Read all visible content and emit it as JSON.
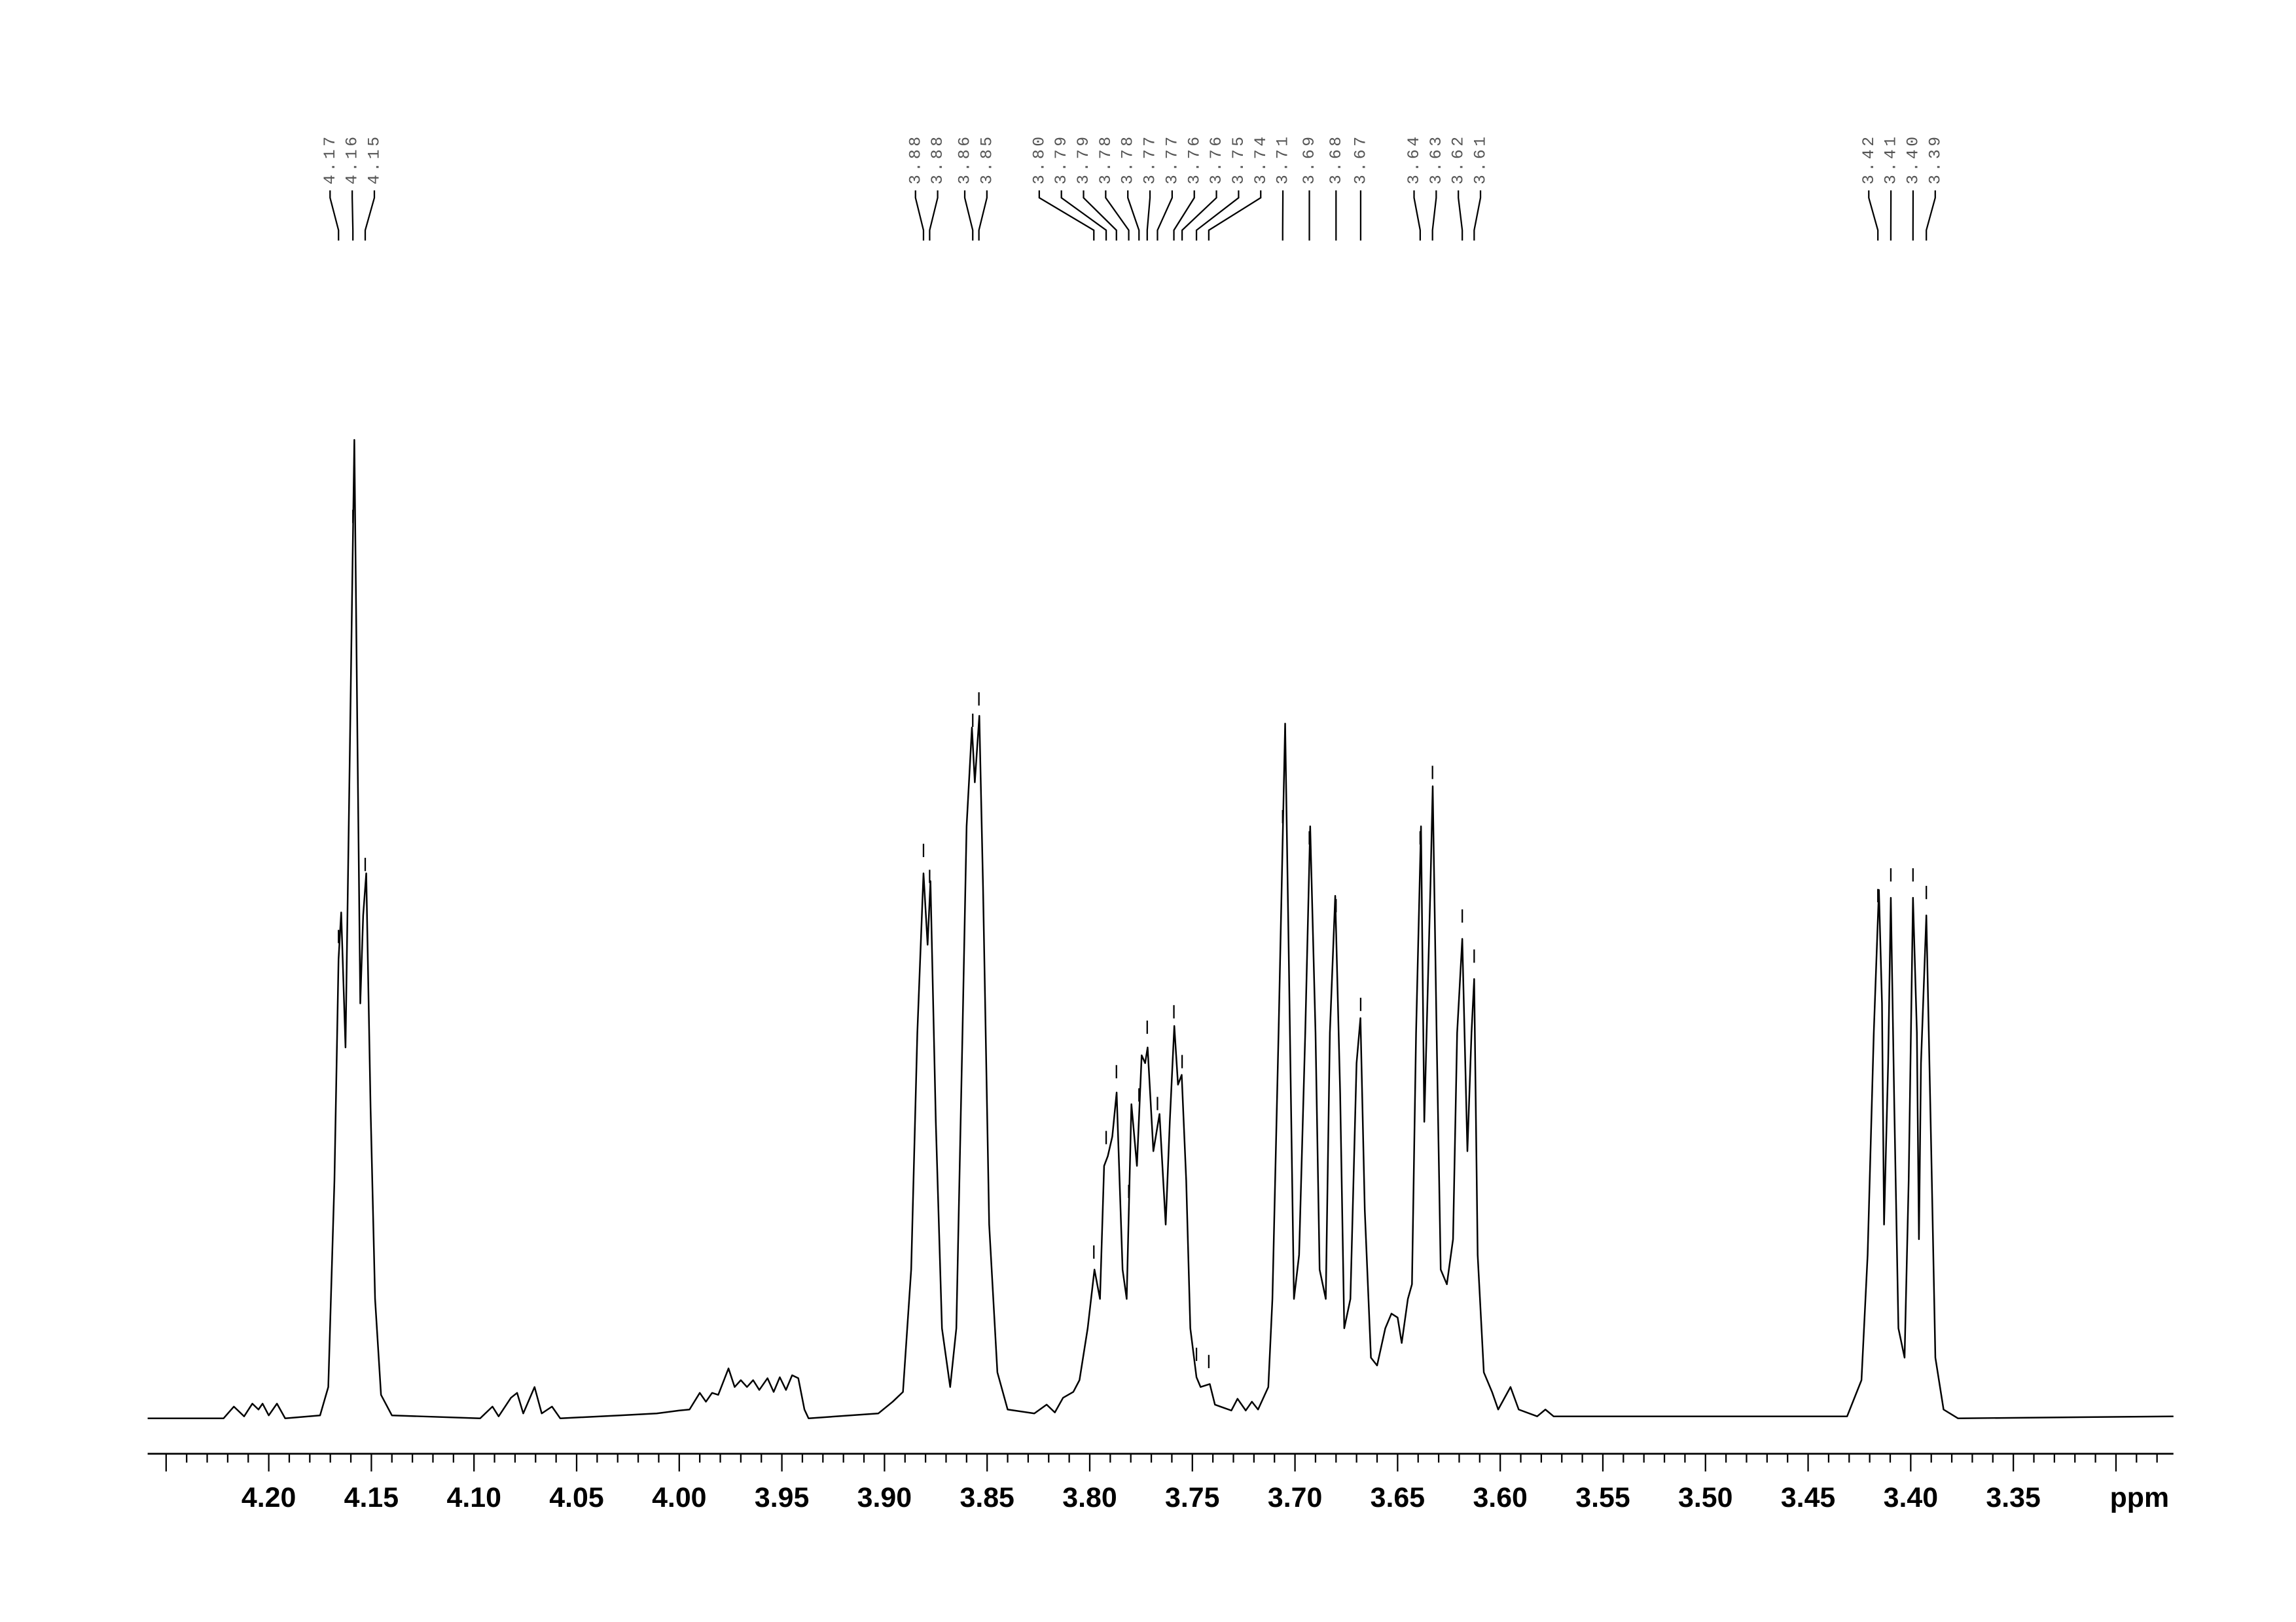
{
  "chart_data": {
    "type": "line",
    "xlabel": "ppm",
    "color": "#000000",
    "xlim": [
      4.259,
      3.272
    ],
    "ylim": [
      0,
      100
    ],
    "xticks": [
      {
        "value": 4.2,
        "label": "4.20"
      },
      4.15,
      {
        "value": 4.1,
        "label": "4.10"
      },
      4.05,
      {
        "value": 4.0,
        "label": "4.00"
      },
      3.95,
      {
        "value": 3.9,
        "label": "3.90"
      },
      3.85,
      {
        "value": 3.8,
        "label": "3.80"
      },
      3.75,
      {
        "value": 3.7,
        "label": "3.70"
      },
      3.65,
      {
        "value": 3.6,
        "label": "3.60"
      },
      3.55,
      {
        "value": 3.5,
        "label": "3.50"
      },
      3.45,
      {
        "value": 3.4,
        "label": "3.40"
      },
      3.35
    ],
    "xminorticks": [
      4.25,
      4.24,
      4.23,
      4.22,
      4.21,
      4.2,
      4.19,
      4.18,
      4.17,
      4.16,
      4.15,
      4.14,
      4.13,
      4.12,
      4.11,
      4.1,
      4.09,
      4.08,
      4.07,
      4.06,
      4.05,
      4.04,
      4.03,
      4.02,
      4.01,
      4.0,
      3.99,
      3.98,
      3.97,
      3.96,
      3.95,
      3.94,
      3.93,
      3.92,
      3.91,
      3.9,
      3.89,
      3.88,
      3.87,
      3.86,
      3.85,
      3.84,
      3.83,
      3.82,
      3.81,
      3.8,
      3.79,
      3.78,
      3.77,
      3.76,
      3.75,
      3.74,
      3.73,
      3.72,
      3.71,
      3.7,
      3.69,
      3.68,
      3.67,
      3.66,
      3.65,
      3.64,
      3.63,
      3.62,
      3.61,
      3.6,
      3.59,
      3.58,
      3.57,
      3.56,
      3.55,
      3.54,
      3.53,
      3.52,
      3.51,
      3.5,
      3.49,
      3.48,
      3.47,
      3.46,
      3.45,
      3.44,
      3.43,
      3.42,
      3.41,
      3.4,
      3.39,
      3.38,
      3.37,
      3.36,
      3.35,
      3.34,
      3.33,
      3.32,
      3.31,
      3.3,
      3.29,
      3.28
    ],
    "peak_labels": [
      {
        "value": 4.166,
        "label": "4.17"
      },
      {
        "value": 4.159,
        "label": "4.16"
      },
      {
        "value": 4.153,
        "label": "4.15"
      },
      {
        "value": 3.881,
        "label": "3.88"
      },
      {
        "value": 3.878,
        "label": "3.88"
      },
      {
        "value": 3.857,
        "label": "3.86"
      },
      {
        "value": 3.854,
        "label": "3.85"
      },
      {
        "value": 3.798,
        "label": "3.80"
      },
      {
        "value": 3.792,
        "label": "3.79"
      },
      {
        "value": 3.787,
        "label": "3.79"
      },
      {
        "value": 3.781,
        "label": "3.78"
      },
      {
        "value": 3.776,
        "label": "3.78"
      },
      {
        "value": 3.772,
        "label": "3.77"
      },
      {
        "value": 3.767,
        "label": "3.77"
      },
      {
        "value": 3.759,
        "label": "3.76"
      },
      {
        "value": 3.755,
        "label": "3.76"
      },
      {
        "value": 3.748,
        "label": "3.75"
      },
      {
        "value": 3.742,
        "label": "3.74"
      },
      {
        "value": 3.706,
        "label": "3.71"
      },
      {
        "value": 3.693,
        "label": "3.69"
      },
      {
        "value": 3.68,
        "label": "3.68"
      },
      {
        "value": 3.668,
        "label": "3.67"
      },
      {
        "value": 3.639,
        "label": "3.64"
      },
      {
        "value": 3.633,
        "label": "3.63"
      },
      {
        "value": 3.6185,
        "label": "3.62"
      },
      {
        "value": 3.6127,
        "label": "3.61"
      },
      {
        "value": 3.416,
        "label": "3.42"
      },
      {
        "value": 3.4097,
        "label": "3.41"
      },
      {
        "value": 3.3989,
        "label": "3.40"
      },
      {
        "value": 3.3924,
        "label": "3.39"
      }
    ],
    "x": [
      4.259,
      4.222,
      4.217,
      4.212,
      4.208,
      4.205,
      4.203,
      4.2,
      4.196,
      4.192,
      4.175,
      4.171,
      4.168,
      4.166,
      4.1647,
      4.1626,
      4.1604,
      4.1583,
      4.1568,
      4.1554,
      4.154,
      4.1525,
      4.1504,
      4.1482,
      4.1453,
      4.14,
      4.097,
      4.091,
      4.088,
      4.082,
      4.079,
      4.076,
      4.0705,
      4.067,
      4.062,
      4.058,
      4.029,
      4.011,
      4.0,
      3.995,
      3.99,
      3.987,
      3.984,
      3.981,
      3.976,
      3.973,
      3.97,
      3.967,
      3.964,
      3.961,
      3.957,
      3.954,
      3.951,
      3.948,
      3.945,
      3.942,
      3.939,
      3.937,
      3.903,
      3.896,
      3.891,
      3.887,
      3.884,
      3.881,
      3.879,
      3.8776,
      3.875,
      3.872,
      3.868,
      3.865,
      3.862,
      3.86,
      3.8574,
      3.856,
      3.8538,
      3.852,
      3.849,
      3.845,
      3.84,
      3.827,
      3.821,
      3.817,
      3.813,
      3.808,
      3.805,
      3.801,
      3.7977,
      3.795,
      3.793,
      3.7912,
      3.789,
      3.7869,
      3.784,
      3.782,
      3.7797,
      3.777,
      3.7747,
      3.773,
      3.7718,
      3.769,
      3.766,
      3.763,
      3.761,
      3.7588,
      3.757,
      3.7552,
      3.753,
      3.751,
      3.748,
      3.746,
      3.7415,
      3.739,
      3.735,
      3.731,
      3.728,
      3.724,
      3.721,
      3.718,
      3.713,
      3.711,
      3.708,
      3.7048,
      3.703,
      3.7005,
      3.698,
      3.695,
      3.6926,
      3.69,
      3.688,
      3.685,
      3.683,
      3.6804,
      3.678,
      3.676,
      3.673,
      3.67,
      3.6681,
      3.666,
      3.663,
      3.66,
      3.656,
      3.653,
      3.65,
      3.648,
      3.645,
      3.643,
      3.641,
      3.6386,
      3.637,
      3.634,
      3.6329,
      3.631,
      3.629,
      3.626,
      3.623,
      3.621,
      3.6185,
      3.616,
      3.614,
      3.6127,
      3.611,
      3.608,
      3.604,
      3.601,
      3.595,
      3.591,
      3.582,
      3.578,
      3.574,
      3.539,
      3.467,
      3.431,
      3.424,
      3.421,
      3.418,
      3.4155,
      3.414,
      3.413,
      3.411,
      3.4097,
      3.408,
      3.406,
      3.403,
      3.401,
      3.3989,
      3.397,
      3.396,
      3.395,
      3.3924,
      3.39,
      3.388,
      3.384,
      3.377,
      3.272
    ],
    "values": [
      0,
      0,
      1.2,
      0.2,
      1.5,
      0.9,
      1.5,
      0.3,
      1.5,
      0,
      0.3,
      3.2,
      24.3,
      46.9,
      51.7,
      37.9,
      69.5,
      100,
      69.5,
      42.4,
      51.4,
      55.7,
      31.8,
      12.2,
      2.4,
      0.3,
      0,
      1.2,
      0.2,
      2.1,
      2.6,
      0.5,
      3.2,
      0.5,
      1.2,
      0,
      0.3,
      0.5,
      0.8,
      0.9,
      2.6,
      1.7,
      2.6,
      2.4,
      5.1,
      3.2,
      3.9,
      3.2,
      3.9,
      2.9,
      4.1,
      2.7,
      4.2,
      2.9,
      4.4,
      4.1,
      0.9,
      0,
      0.5,
      1.7,
      2.7,
      15.2,
      39.4,
      55.7,
      48.4,
      54.9,
      30.3,
      9.2,
      3.2,
      9.2,
      39.4,
      60.5,
      70.6,
      65.0,
      71.8,
      54.4,
      19.8,
      4.7,
      0.9,
      0.5,
      1.4,
      0.6,
      2.1,
      2.7,
      3.9,
      9.2,
      15.2,
      12.2,
      25.8,
      26.8,
      28.8,
      33.3,
      15.2,
      12.2,
      32.1,
      25.8,
      37.1,
      36.3,
      37.9,
      27.3,
      31.1,
      19.8,
      30.3,
      40.1,
      34.1,
      35.1,
      24.3,
      9.2,
      4.2,
      3.2,
      3.5,
      1.4,
      1.1,
      0.8,
      2.0,
      0.8,
      1.7,
      0.9,
      3.2,
      12.2,
      39.4,
      71.0,
      46.9,
      12.2,
      16.7,
      39.4,
      60.5,
      39.4,
      15.2,
      12.2,
      39.4,
      53.4,
      33.3,
      9.2,
      12.2,
      36.3,
      40.9,
      21.3,
      6.2,
      5.4,
      9.2,
      10.7,
      10.3,
      7.7,
      12.2,
      13.7,
      39.4,
      60.5,
      30.3,
      54.4,
      64.6,
      39.4,
      15.2,
      13.7,
      18.3,
      39.4,
      49.0,
      27.3,
      39.4,
      44.9,
      16.7,
      4.7,
      2.7,
      0.9,
      3.2,
      0.9,
      0.2,
      0.9,
      0.2,
      0.2,
      0.2,
      0.2,
      3.9,
      16.7,
      39.4,
      54.0,
      42.4,
      19.8,
      36.3,
      53.2,
      31.8,
      9.2,
      6.2,
      24.3,
      53.2,
      39.4,
      18.3,
      36.3,
      51.4,
      27.3,
      6.2,
      0.9,
      0,
      0.2
    ]
  }
}
